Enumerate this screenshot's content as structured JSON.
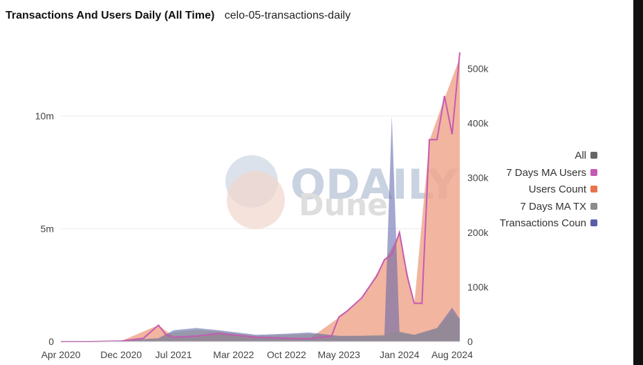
{
  "header": {
    "title": "Transactions And Users Daily (All Time)",
    "subtitle": "celo-05-transactions-daily"
  },
  "watermarks": {
    "odaily": "ODAILY",
    "dune": "Dune"
  },
  "colors": {
    "all": "#666666",
    "ma_users": "#c45ab3",
    "users_count": "#f0a88e",
    "ma_tx": "#8c8c8c",
    "tx_count": "#5a5ea8",
    "grid": "#ececec",
    "axis_text": "#444444"
  },
  "chart_data": {
    "type": "area",
    "x_ticks": [
      "Apr 2020",
      "Dec 2020",
      "Jul 2021",
      "Mar 2022",
      "Oct 2022",
      "May 2023",
      "Jan 2024",
      "Aug 2024"
    ],
    "y_left": {
      "ticks": [
        "0",
        "5m",
        "10m"
      ],
      "range": [
        0,
        10000000
      ]
    },
    "y_right": {
      "ticks": [
        "0",
        "100k",
        "200k",
        "300k",
        "400k",
        "500k"
      ],
      "range": [
        0,
        500000
      ]
    },
    "legend": [
      {
        "name": "All",
        "color": "#666666"
      },
      {
        "name": "7 Days MA Users",
        "color": "#c45ab3"
      },
      {
        "name": "Users Count",
        "color": "#e8734a"
      },
      {
        "name": "7 Days MA TX",
        "color": "#8c8c8c"
      },
      {
        "name": "Transactions Coun",
        "color": "#5a5ea8"
      }
    ],
    "series": [
      {
        "name": "7 Days MA Users",
        "axis": "right",
        "x": [
          "2020-04",
          "2020-08",
          "2020-12",
          "2021-03",
          "2021-05",
          "2021-06",
          "2021-07",
          "2021-10",
          "2022-01",
          "2022-03",
          "2022-06",
          "2022-10",
          "2023-01",
          "2023-04",
          "2023-05",
          "2023-06",
          "2023-08",
          "2023-10",
          "2023-11",
          "2023-12",
          "2024-01",
          "2024-02",
          "2024-03",
          "2024-04",
          "2024-05",
          "2024-06",
          "2024-07",
          "2024-08",
          "2024-09"
        ],
        "values": [
          0,
          0,
          1000,
          6000,
          30000,
          12000,
          8000,
          10000,
          15000,
          12000,
          8000,
          6000,
          5000,
          10000,
          45000,
          55000,
          80000,
          120000,
          150000,
          160000,
          200000,
          120000,
          70000,
          70000,
          370000,
          370000,
          450000,
          380000,
          530000
        ]
      },
      {
        "name": "Users Count",
        "axis": "right",
        "x": [
          "2020-04",
          "2020-12",
          "2021-05",
          "2021-07",
          "2022-01",
          "2022-06",
          "2023-01",
          "2023-05",
          "2023-08",
          "2023-11",
          "2024-01",
          "2024-03",
          "2024-05",
          "2024-07",
          "2024-09"
        ],
        "values": [
          0,
          1000,
          30000,
          9000,
          14000,
          8000,
          5000,
          44000,
          78000,
          148000,
          195000,
          68000,
          368000,
          445000,
          520000
        ]
      },
      {
        "name": "Transactions Count",
        "axis": "left",
        "x": [
          "2020-04",
          "2020-12",
          "2021-05",
          "2021-07",
          "2021-10",
          "2022-01",
          "2022-06",
          "2022-10",
          "2023-01",
          "2023-05",
          "2023-11",
          "2023-12",
          "2024-01",
          "2024-03",
          "2024-06",
          "2024-08",
          "2024-09"
        ],
        "values": [
          0,
          50000,
          150000,
          500000,
          600000,
          500000,
          300000,
          350000,
          400000,
          250000,
          250000,
          10000000,
          400000,
          300000,
          600000,
          1500000,
          1000000
        ]
      },
      {
        "name": "7 Days MA TX",
        "axis": "left",
        "x": [
          "2020-04",
          "2020-12",
          "2021-05",
          "2021-07",
          "2021-10",
          "2022-01",
          "2022-06",
          "2022-10",
          "2023-01",
          "2023-05",
          "2023-11",
          "2024-01",
          "2024-03",
          "2024-06",
          "2024-08",
          "2024-09"
        ],
        "values": [
          0,
          40000,
          120000,
          420000,
          520000,
          450000,
          260000,
          300000,
          350000,
          220000,
          300000,
          450000,
          300000,
          550000,
          1300000,
          950000
        ]
      }
    ]
  }
}
